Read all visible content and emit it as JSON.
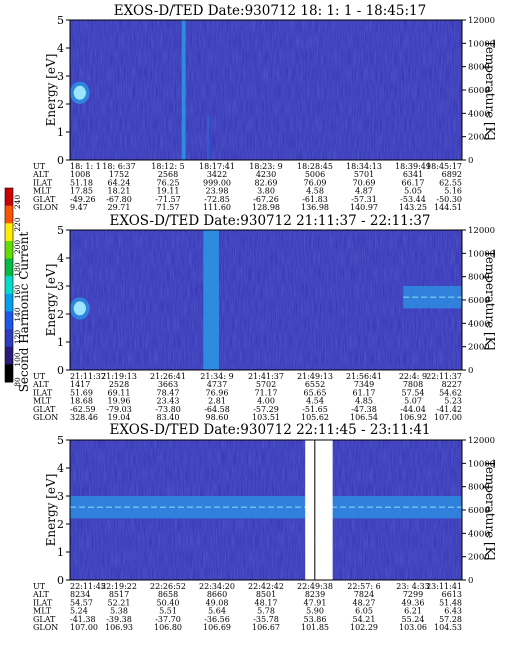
{
  "colors": {
    "background": "#3a38b8",
    "intense_band": "#2e8ce0",
    "peak": "#a8f0ff",
    "artifact": "#ffffff",
    "frame": "#000000"
  },
  "colorbar": {
    "label": "Second Harmonic Current",
    "ticks": [
      "240",
      "220",
      "200",
      "180",
      "160",
      "140",
      "120",
      "100",
      "80"
    ],
    "colors": [
      "#cc0000",
      "#ff5500",
      "#ffee00",
      "#66dd00",
      "#00bb44",
      "#00ddcc",
      "#00a0f0",
      "#1e56e8",
      "#303cc0",
      "#2a1a7a",
      "#000000"
    ]
  },
  "chart_data": [
    {
      "type": "heatmap",
      "title": "EXOS-D/TED   Date:930712  18: 1: 1 - 18:45:17",
      "ylabel": "Energy [eV]",
      "y2label": "Temperature [K]",
      "ylim": [
        0,
        5
      ],
      "y2lim": [
        0,
        12000
      ],
      "yticks": [
        "0",
        "1",
        "2",
        "3",
        "4",
        "5"
      ],
      "y2ticks": [
        "0",
        "2000",
        "4000",
        "6000",
        "8000",
        "10000",
        "12000"
      ],
      "rows": [
        {
          "label": "UT",
          "values": [
            "18: 1: 1",
            "18: 6:37",
            "18:12: 5",
            "18:17:41",
            "18:23: 9",
            "18:28:45",
            "18:34:13",
            "18:39:49",
            "18:45:17"
          ]
        },
        {
          "label": "ALT",
          "values": [
            "1008",
            "1752",
            "2568",
            "3422",
            "4230",
            "5006",
            "5701",
            "6341",
            "6892"
          ]
        },
        {
          "label": "ILAT",
          "values": [
            "51.18",
            "64.24",
            "76.25",
            "999.00",
            "82.69",
            "76.09",
            "70.69",
            "66.17",
            "62.55"
          ]
        },
        {
          "label": "MLT",
          "values": [
            "17.85",
            "18.21",
            "19.11",
            "23.98",
            "3.80",
            "4.58",
            "4.87",
            "5.05",
            "5.16"
          ]
        },
        {
          "label": "GLAT",
          "values": [
            "-49.26",
            "-67.80",
            "-71.57",
            "-72.85",
            "-67.26",
            "-61.83",
            "-57.31",
            "-53.44",
            "-50.30"
          ]
        },
        {
          "label": "GLON",
          "values": [
            "9.47",
            "29.71",
            "71.57",
            "111.60",
            "128.98",
            "136.98",
            "140.97",
            "143.25",
            "144.51"
          ]
        }
      ],
      "features": [
        {
          "kind": "peak",
          "t": [
            0.0,
            0.05
          ],
          "e": [
            2.0,
            2.8
          ],
          "level": "high"
        },
        {
          "kind": "vertical_band",
          "t": [
            0.285,
            0.295
          ],
          "e": [
            0,
            5
          ],
          "level": "high"
        },
        {
          "kind": "vertical_band",
          "t": [
            0.35,
            0.354
          ],
          "e": [
            0,
            1.6
          ],
          "level": "mid"
        }
      ]
    },
    {
      "type": "heatmap",
      "title": "EXOS-D/TED   Date:930712  21:11:37 - 22:11:37",
      "ylabel": "Energy [eV]",
      "y2label": "Temperature [K]",
      "ylim": [
        0,
        5
      ],
      "y2lim": [
        0,
        12000
      ],
      "yticks": [
        "0",
        "1",
        "2",
        "3",
        "4",
        "5"
      ],
      "y2ticks": [
        "0",
        "2000",
        "4000",
        "6000",
        "8000",
        "10000",
        "12000"
      ],
      "rows": [
        {
          "label": "UT",
          "values": [
            "21:11:37",
            "21:19:13",
            "21:26:41",
            "21:34: 9",
            "21:41:37",
            "21:49:13",
            "21:56:41",
            "22:4: 9",
            "22:11:37"
          ]
        },
        {
          "label": "ALT",
          "values": [
            "1417",
            "2528",
            "3663",
            "4737",
            "5702",
            "6552",
            "7349",
            "7808",
            "8227"
          ]
        },
        {
          "label": "ILAT",
          "values": [
            "51.69",
            "69.11",
            "78.47",
            "76.96",
            "71.17",
            "65.65",
            "61.17",
            "57.54",
            "54.62"
          ]
        },
        {
          "label": "MLT",
          "values": [
            "18.68",
            "19.96",
            "23.43",
            "2.81",
            "4.00",
            "4.54",
            "4.85",
            "5.07",
            "5.23"
          ]
        },
        {
          "label": "GLAT",
          "values": [
            "-62.59",
            "-79.03",
            "-73.80",
            "-64.58",
            "-57.29",
            "-51.65",
            "-47.38",
            "-44.04",
            "-41.42"
          ]
        },
        {
          "label": "GLON",
          "values": [
            "328.46",
            "19.04",
            "83.40",
            "98.60",
            "103.51",
            "105.62",
            "106.54",
            "106.92",
            "107.00"
          ]
        }
      ],
      "features": [
        {
          "kind": "peak",
          "t": [
            0.0,
            0.05
          ],
          "e": [
            1.8,
            2.6
          ],
          "level": "high"
        },
        {
          "kind": "vertical_band",
          "t": [
            0.34,
            0.38
          ],
          "e": [
            0,
            5
          ],
          "level": "high"
        },
        {
          "kind": "band",
          "t": [
            0.85,
            1.0
          ],
          "e": [
            2.2,
            3.0
          ],
          "level": "high"
        }
      ]
    },
    {
      "type": "heatmap",
      "title": "EXOS-D/TED   Date:930712  22:11:45 - 23:11:41",
      "ylabel": "Energy [eV]",
      "y2label": "Temperature [K]",
      "ylim": [
        0,
        5
      ],
      "y2lim": [
        0,
        12000
      ],
      "yticks": [
        "0",
        "1",
        "2",
        "3",
        "4",
        "5"
      ],
      "y2ticks": [
        "0",
        "2000",
        "4000",
        "6000",
        "8000",
        "10000",
        "12000"
      ],
      "rows": [
        {
          "label": "UT",
          "values": [
            "22:11:45",
            "22:19:22",
            "22:26:52",
            "22:34:20",
            "22:42:42",
            "22:49:38",
            "22:57: 6",
            "23: 4:33",
            "23:11:41"
          ]
        },
        {
          "label": "ALT",
          "values": [
            "8234",
            "8517",
            "8658",
            "8660",
            "8501",
            "8239",
            "7824",
            "7299",
            "6613"
          ]
        },
        {
          "label": "ILAT",
          "values": [
            "54.57",
            "52.21",
            "50.40",
            "49.08",
            "48.17",
            "47.91",
            "48.27",
            "49.36",
            "51.48"
          ]
        },
        {
          "label": "MLT",
          "values": [
            "5.24",
            "5.38",
            "5.51",
            "5.64",
            "5.78",
            "5.90",
            "6.05",
            "6.21",
            "6.43"
          ]
        },
        {
          "label": "GLAT",
          "values": [
            "-41.38",
            "-39.38",
            "-37.70",
            "-36.56",
            "-35.78",
            "53.86",
            "54.21",
            "55.24",
            "57.28"
          ]
        },
        {
          "label": "GLON",
          "values": [
            "107.00",
            "106.93",
            "106.80",
            "106.69",
            "106.67",
            "101.85",
            "102.29",
            "103.06",
            "104.53"
          ]
        }
      ],
      "features": [
        {
          "kind": "band",
          "t": [
            0.0,
            1.0
          ],
          "e": [
            2.2,
            3.0
          ],
          "level": "high"
        },
        {
          "kind": "data_gap",
          "t": [
            0.6,
            0.67
          ],
          "e": [
            0,
            5
          ]
        }
      ]
    }
  ]
}
